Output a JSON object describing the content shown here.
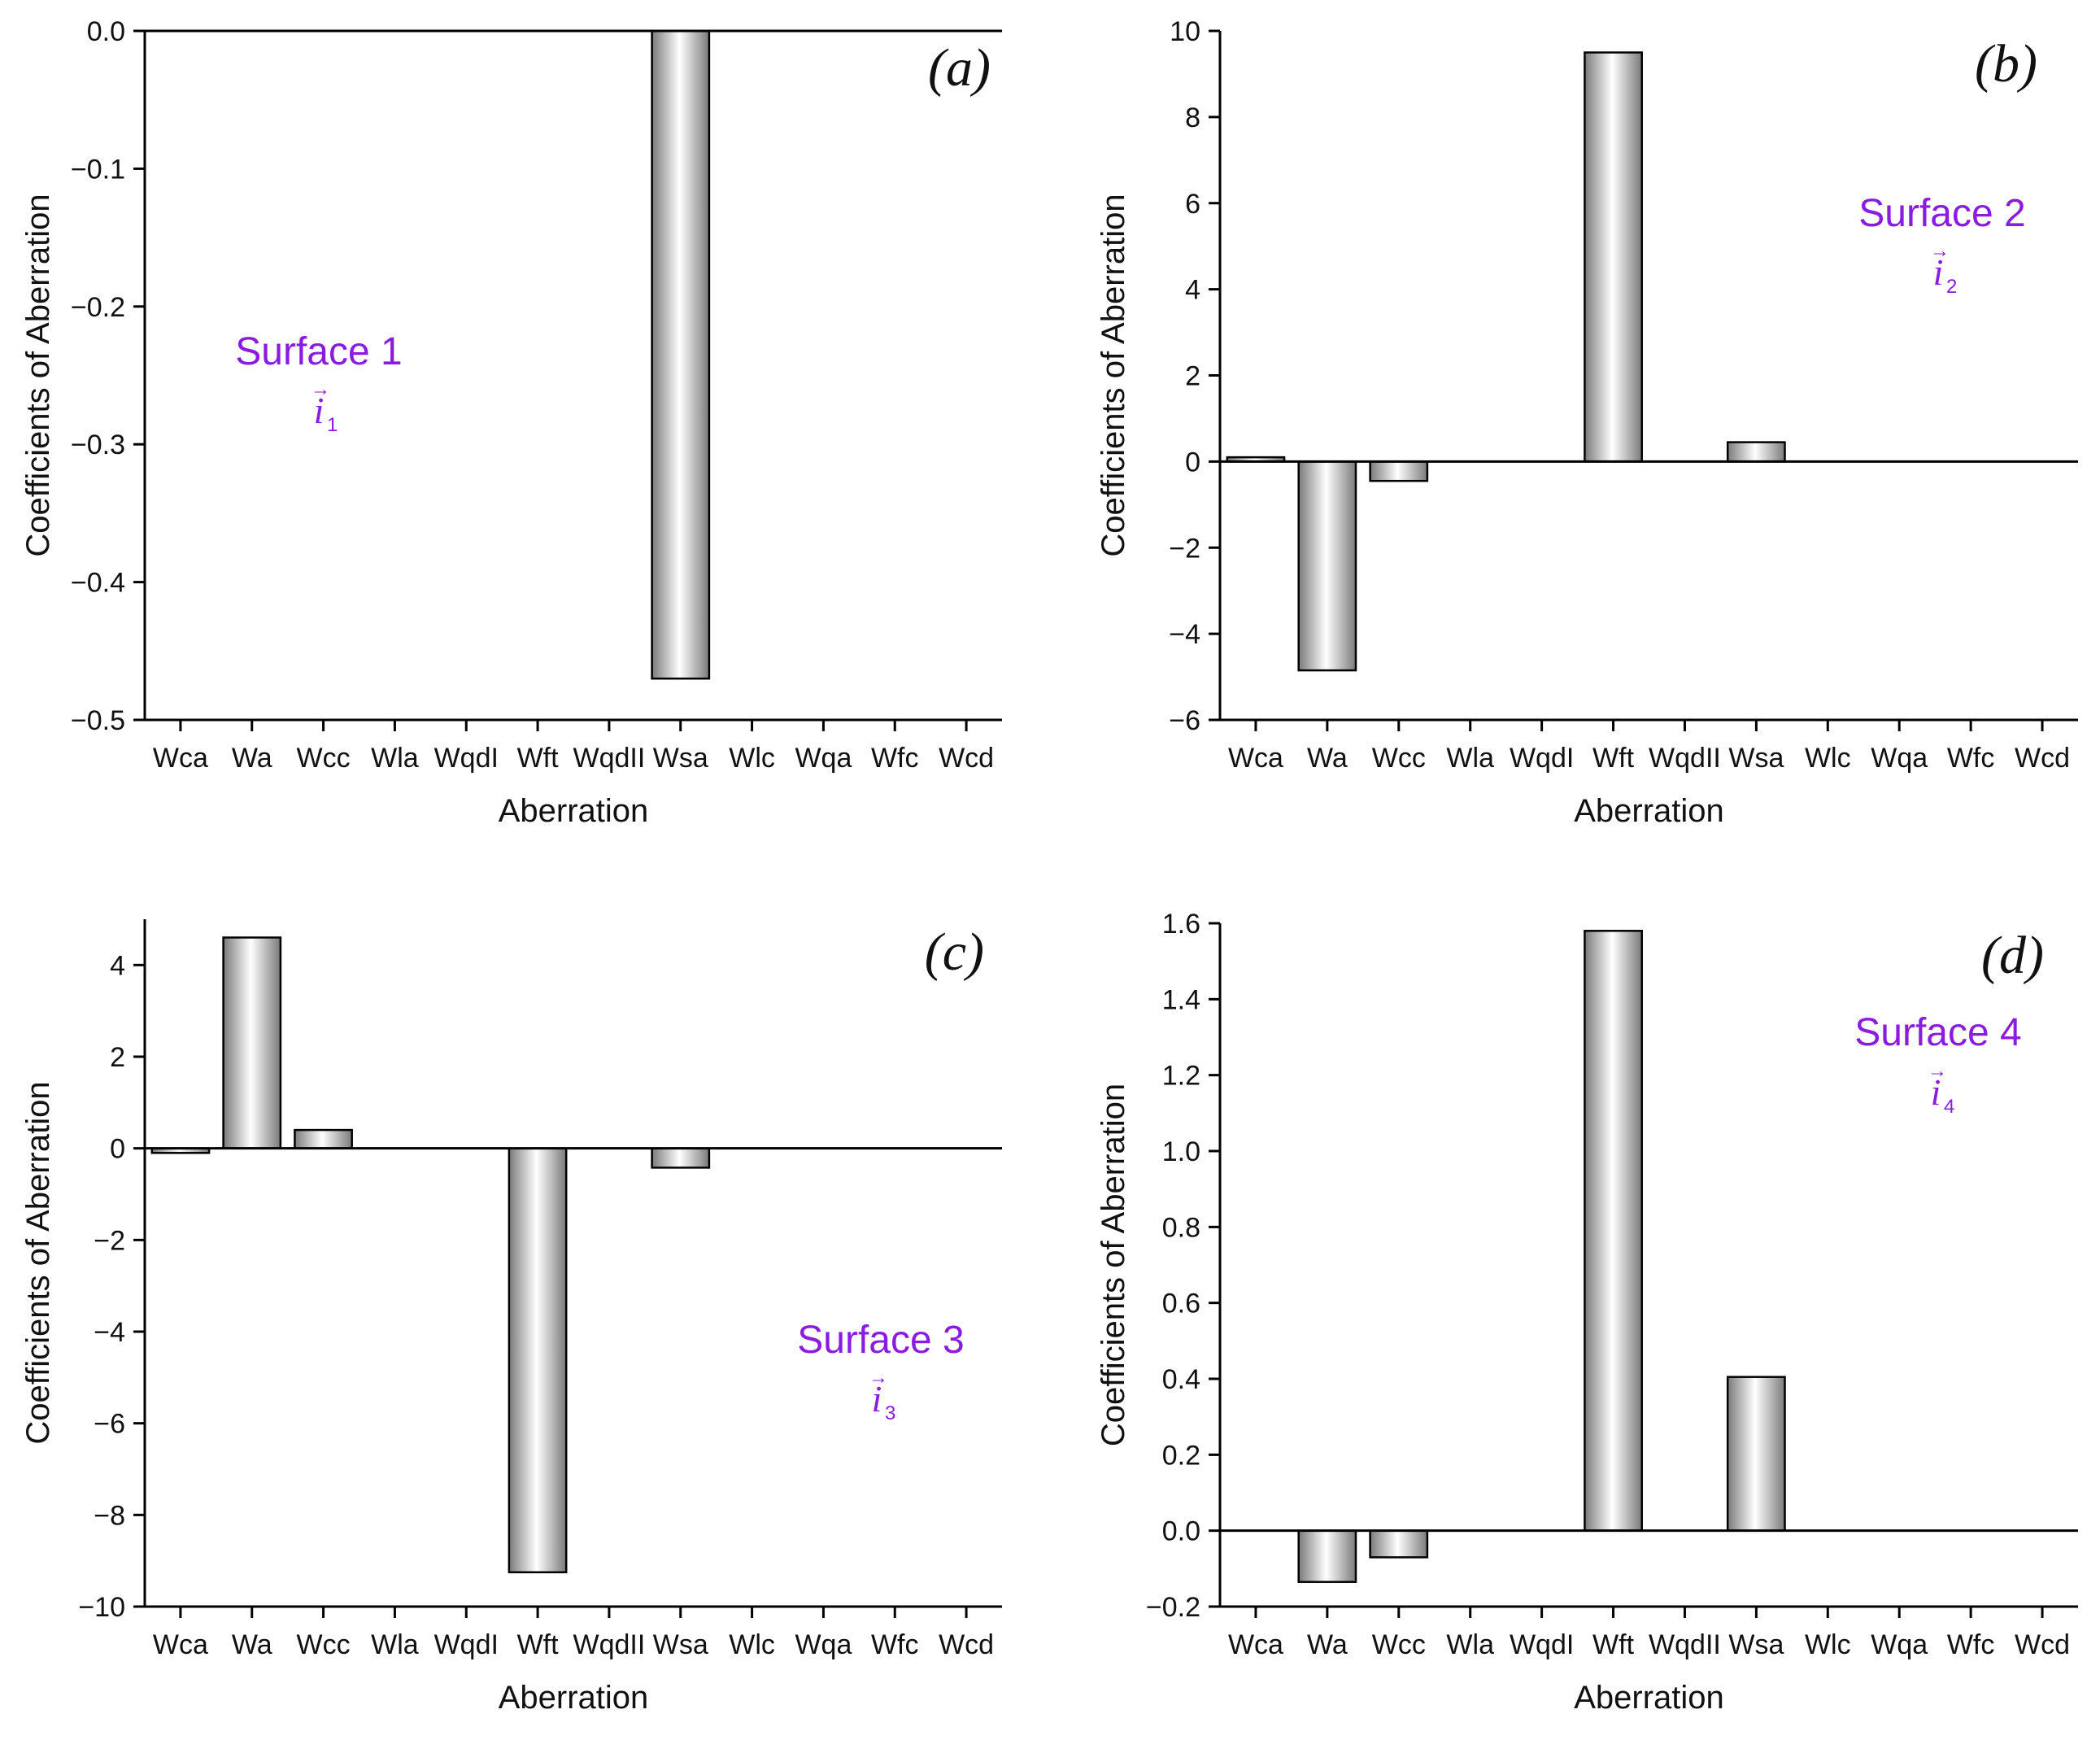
{
  "figure": {
    "panels": [
      {
        "id": "a",
        "panel_label": "a",
        "surface_title": "Surface 1",
        "vector_symbol": "i",
        "vector_index": "1"
      },
      {
        "id": "b",
        "panel_label": "b",
        "surface_title": "Surface 2",
        "vector_symbol": "i",
        "vector_index": "2"
      },
      {
        "id": "c",
        "panel_label": "c",
        "surface_title": "Surface 3",
        "vector_symbol": "i",
        "vector_index": "3"
      },
      {
        "id": "d",
        "panel_label": "d",
        "surface_title": "Surface 4",
        "vector_symbol": "i",
        "vector_index": "4"
      }
    ]
  },
  "colors": {
    "surface_text": "#8a1ce0",
    "axis": "#000000",
    "bar_edge": "#000000",
    "bar_dark": "#7a7a7a",
    "bar_light": "#ffffff"
  },
  "chart_data": [
    {
      "type": "bar",
      "title": "",
      "xlabel": "Aberration",
      "ylabel": "Coefficients of Aberration",
      "categories": [
        "Wca",
        "Wa",
        "Wcc",
        "Wla",
        "WqdI",
        "Wft",
        "WqdII",
        "Wsa",
        "Wlc",
        "Wqa",
        "Wfc",
        "Wcd"
      ],
      "values": [
        0,
        0,
        0,
        0,
        0,
        0,
        0,
        -0.47,
        0,
        0,
        0,
        0
      ],
      "ylim": [
        -0.5,
        0.0
      ],
      "yticks": [
        -0.5,
        -0.4,
        -0.3,
        -0.2,
        -0.1,
        0.0
      ],
      "ytick_labels": [
        "−0.5",
        "−0.4",
        "−0.3",
        "−0.2",
        "−0.1",
        "0.0"
      ],
      "grid": false
    },
    {
      "type": "bar",
      "title": "",
      "xlabel": "Aberration",
      "ylabel": "Coefficients of Aberration",
      "categories": [
        "Wca",
        "Wa",
        "Wcc",
        "Wla",
        "WqdI",
        "Wft",
        "WqdII",
        "Wsa",
        "Wlc",
        "Wqa",
        "Wfc",
        "Wcd"
      ],
      "values": [
        0.1,
        -4.85,
        -0.45,
        0,
        0,
        9.5,
        0,
        0.45,
        0,
        0,
        0,
        0
      ],
      "ylim": [
        -6,
        10
      ],
      "yticks": [
        -6,
        -4,
        -2,
        0,
        2,
        4,
        6,
        8,
        10
      ],
      "ytick_labels": [
        "−6",
        "−4",
        "−2",
        "0",
        "2",
        "4",
        "6",
        "8",
        "10"
      ],
      "grid": false
    },
    {
      "type": "bar",
      "title": "",
      "xlabel": "Aberration",
      "ylabel": "Coefficients of Aberration",
      "categories": [
        "Wca",
        "Wa",
        "Wcc",
        "Wla",
        "WqdI",
        "Wft",
        "WqdII",
        "Wsa",
        "Wlc",
        "Wqa",
        "Wfc",
        "Wcd"
      ],
      "values": [
        -0.1,
        4.6,
        0.4,
        0,
        0,
        -9.25,
        0,
        -0.42,
        0,
        0,
        0,
        0
      ],
      "ylim": [
        -10,
        5
      ],
      "yticks": [
        -10,
        -8,
        -6,
        -4,
        -2,
        0,
        2,
        4
      ],
      "ytick_labels": [
        "−10",
        "−8",
        "−6",
        "−4",
        "−2",
        "0",
        "2",
        "4"
      ],
      "grid": false
    },
    {
      "type": "bar",
      "title": "",
      "xlabel": "Aberration",
      "ylabel": "Coefficients of Aberration",
      "categories": [
        "Wca",
        "Wa",
        "Wcc",
        "Wla",
        "WqdI",
        "Wft",
        "WqdII",
        "Wsa",
        "Wlc",
        "Wqa",
        "Wfc",
        "Wcd"
      ],
      "values": [
        0.0,
        -0.135,
        -0.07,
        0,
        0,
        1.58,
        0,
        0.405,
        0,
        0,
        0,
        0
      ],
      "ylim": [
        -0.2,
        1.6
      ],
      "yticks": [
        -0.2,
        0.0,
        0.2,
        0.4,
        0.6,
        0.8,
        1.0,
        1.2,
        1.4,
        1.6
      ],
      "ytick_labels": [
        "−0.2",
        "0.0",
        "0.2",
        "0.4",
        "0.6",
        "0.8",
        "1.0",
        "1.2",
        "1.4",
        "1.6"
      ],
      "grid": false
    }
  ]
}
